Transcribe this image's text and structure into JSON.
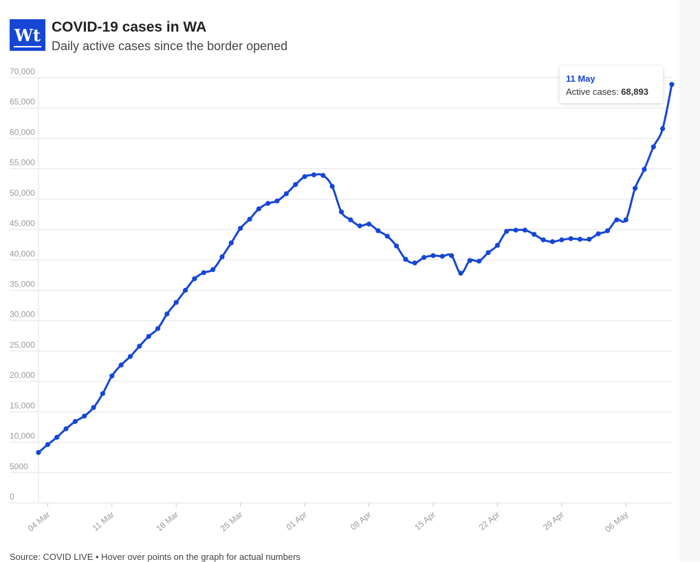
{
  "header": {
    "logo_text": "Wt",
    "title": "COVID-19 cases in WA",
    "subtitle": "Daily active cases since the border opened"
  },
  "tooltip": {
    "date": "11 May",
    "label": "Active cases: ",
    "value": "68,893"
  },
  "footer": {
    "source": "Source: COVID LIVE • Hover over points on the graph for actual numbers"
  },
  "colors": {
    "series": "#1646d6",
    "grid": "#e3e3e3",
    "tick_text": "#9a9a9a"
  },
  "chart_data": {
    "type": "line",
    "title": "COVID-19 cases in WA",
    "subtitle": "Daily active cases since the border opened",
    "xlabel": "",
    "ylabel": "",
    "ylim": [
      0,
      70000
    ],
    "grid": true,
    "legend": "none",
    "x_start": "03 Mar",
    "x_end": "11 May",
    "x_tick_labels": [
      "04 Mar",
      "11 Mar",
      "18 Mar",
      "25 Mar",
      "01 Apr",
      "08 Apr",
      "15 Apr",
      "22 Apr",
      "29 Apr",
      "06 May"
    ],
    "y_tick_labels": [
      "0",
      "5000",
      "10,000",
      "15,000",
      "20,000",
      "25,000",
      "30,000",
      "35,000",
      "40,000",
      "45,000",
      "50,000",
      "55,000",
      "60,000",
      "65,000",
      "70,000"
    ],
    "series": [
      {
        "values": [
          8300,
          9600,
          10800,
          12200,
          13400,
          14300,
          15700,
          18000,
          20900,
          22700,
          24100,
          25800,
          27400,
          28700,
          31100,
          33000,
          35000,
          36900,
          37900,
          38400,
          40500,
          42800,
          45200,
          46700,
          48400,
          49300,
          49700,
          50900,
          52400,
          53700,
          54000,
          53900,
          52100,
          47900,
          46600,
          45600,
          45900,
          44800,
          43900,
          42300,
          40100,
          39500,
          40400,
          40700,
          40600,
          40700,
          37800,
          39900,
          39800,
          41200,
          42400,
          44700,
          44900,
          44900,
          44200,
          43300,
          43000,
          43300,
          43500,
          43400,
          43400,
          44300,
          44800,
          46600,
          46600,
          51800,
          54900,
          58600,
          61600,
          68893
        ]
      }
    ]
  }
}
